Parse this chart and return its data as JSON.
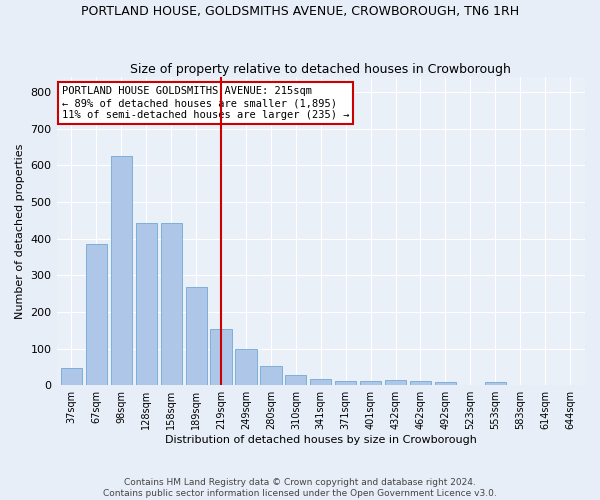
{
  "title": "PORTLAND HOUSE, GOLDSMITHS AVENUE, CROWBOROUGH, TN6 1RH",
  "subtitle": "Size of property relative to detached houses in Crowborough",
  "xlabel": "Distribution of detached houses by size in Crowborough",
  "ylabel": "Number of detached properties",
  "categories": [
    "37sqm",
    "67sqm",
    "98sqm",
    "128sqm",
    "158sqm",
    "189sqm",
    "219sqm",
    "249sqm",
    "280sqm",
    "310sqm",
    "341sqm",
    "371sqm",
    "401sqm",
    "432sqm",
    "462sqm",
    "492sqm",
    "523sqm",
    "553sqm",
    "583sqm",
    "614sqm",
    "644sqm"
  ],
  "values": [
    47,
    385,
    625,
    443,
    443,
    268,
    152,
    98,
    53,
    28,
    18,
    11,
    11,
    14,
    11,
    8,
    0,
    8,
    0,
    0,
    0
  ],
  "bar_color": "#aec6e8",
  "bar_edge_color": "#6fa8d4",
  "vline_x": 6,
  "vline_color": "#cc0000",
  "annotation_text": "PORTLAND HOUSE GOLDSMITHS AVENUE: 215sqm\n← 89% of detached houses are smaller (1,895)\n11% of semi-detached houses are larger (235) →",
  "annotation_box_color": "white",
  "annotation_box_edge": "#cc0000",
  "footer_text": "Contains HM Land Registry data © Crown copyright and database right 2024.\nContains public sector information licensed under the Open Government Licence v3.0.",
  "ylim": [
    0,
    840
  ],
  "yticks": [
    0,
    100,
    200,
    300,
    400,
    500,
    600,
    700,
    800
  ],
  "bg_color": "#e8eef8",
  "plot_bg_color": "#eaf0f8",
  "title_fontsize": 9,
  "subtitle_fontsize": 9
}
